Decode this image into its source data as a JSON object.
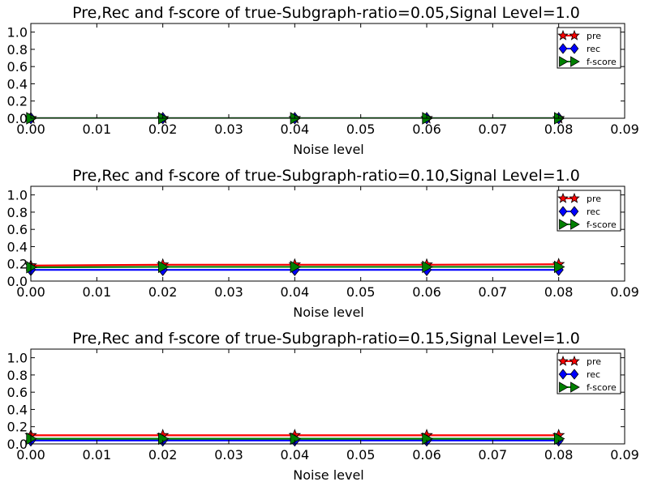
{
  "chart_data": [
    {
      "type": "line",
      "title": "Pre,Rec and f-score of true-Subgraph-ratio=0.05,Signal Level=1.0",
      "xlabel": "Noise level",
      "ylabel": "",
      "xlim": [
        0,
        0.09
      ],
      "ylim": [
        0,
        1.1
      ],
      "xticks": [
        "0.00",
        "0.01",
        "0.02",
        "0.03",
        "0.04",
        "0.05",
        "0.06",
        "0.07",
        "0.08",
        "0.09"
      ],
      "yticks": [
        "0.0",
        "0.2",
        "0.4",
        "0.6",
        "0.8",
        "1.0"
      ],
      "legend_position": "top-right",
      "x": [
        0.0,
        0.02,
        0.04,
        0.06,
        0.08
      ],
      "series": [
        {
          "name": "pre",
          "color": "#ff0000",
          "marker": "star",
          "values": [
            0.0,
            0.0,
            0.0,
            0.0,
            0.0
          ]
        },
        {
          "name": "rec",
          "color": "#0000ff",
          "marker": "diamond",
          "values": [
            0.0,
            0.0,
            0.0,
            0.0,
            0.0
          ]
        },
        {
          "name": "f-score",
          "color": "#008000",
          "marker": "triangle-right",
          "values": [
            0.0,
            0.0,
            0.0,
            0.0,
            0.0
          ]
        }
      ]
    },
    {
      "type": "line",
      "title": "Pre,Rec and f-score of true-Subgraph-ratio=0.10,Signal Level=1.0",
      "xlabel": "Noise level",
      "ylabel": "",
      "xlim": [
        0,
        0.09
      ],
      "ylim": [
        0,
        1.1
      ],
      "xticks": [
        "0.00",
        "0.01",
        "0.02",
        "0.03",
        "0.04",
        "0.05",
        "0.06",
        "0.07",
        "0.08",
        "0.09"
      ],
      "yticks": [
        "0.0",
        "0.2",
        "0.4",
        "0.6",
        "0.8",
        "1.0"
      ],
      "legend_position": "top-right",
      "x": [
        0.0,
        0.02,
        0.04,
        0.06,
        0.08
      ],
      "series": [
        {
          "name": "pre",
          "color": "#ff0000",
          "marker": "star",
          "values": [
            0.18,
            0.19,
            0.19,
            0.19,
            0.195
          ]
        },
        {
          "name": "rec",
          "color": "#0000ff",
          "marker": "diamond",
          "values": [
            0.13,
            0.13,
            0.13,
            0.13,
            0.13
          ]
        },
        {
          "name": "f-score",
          "color": "#008000",
          "marker": "triangle-right",
          "values": [
            0.16,
            0.165,
            0.165,
            0.165,
            0.165
          ]
        }
      ]
    },
    {
      "type": "line",
      "title": "Pre,Rec and f-score of true-Subgraph-ratio=0.15,Signal Level=1.0",
      "xlabel": "Noise level",
      "ylabel": "",
      "xlim": [
        0,
        0.09
      ],
      "ylim": [
        0,
        1.1
      ],
      "xticks": [
        "0.00",
        "0.01",
        "0.02",
        "0.03",
        "0.04",
        "0.05",
        "0.06",
        "0.07",
        "0.08",
        "0.09"
      ],
      "yticks": [
        "0.0",
        "0.2",
        "0.4",
        "0.6",
        "0.8",
        "1.0"
      ],
      "legend_position": "top-right",
      "x": [
        0.0,
        0.02,
        0.04,
        0.06,
        0.08
      ],
      "series": [
        {
          "name": "pre",
          "color": "#ff0000",
          "marker": "star",
          "values": [
            0.1,
            0.1,
            0.1,
            0.1,
            0.1
          ]
        },
        {
          "name": "rec",
          "color": "#0000ff",
          "marker": "diamond",
          "values": [
            0.04,
            0.04,
            0.04,
            0.04,
            0.04
          ]
        },
        {
          "name": "f-score",
          "color": "#008000",
          "marker": "triangle-right",
          "values": [
            0.06,
            0.06,
            0.06,
            0.06,
            0.06
          ]
        }
      ]
    }
  ]
}
